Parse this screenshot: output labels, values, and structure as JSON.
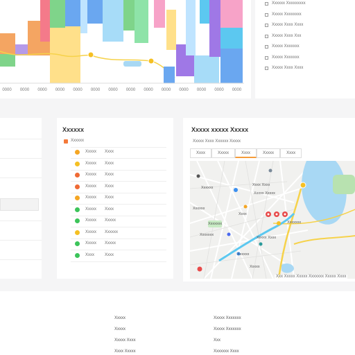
{
  "colors": {
    "bars": [
      "#7fd48a",
      "#f4a562",
      "#b59ae8",
      "#f47a8a",
      "#ffe08a",
      "#6aa7f0",
      "#a7dcf8",
      "#8ee3a8",
      "#f7a3c8",
      "#5cc8f0",
      "#9f78e6",
      "#bfe4ff"
    ],
    "route": "#5cc8f0",
    "water": "#a8d8f4",
    "road": "#f6d24a"
  },
  "chart": {
    "x_ticks": [
      "0000",
      "0000",
      "0000",
      "0000",
      "0000",
      "0000",
      "0000",
      "0000",
      "0000",
      "0000",
      "0000",
      "0000",
      "0000",
      "0000"
    ]
  },
  "legend": {
    "items": [
      "Xxxxxx Xxxxxxxxx",
      "Xxxxx Xxxxxxxx",
      "Xxxxx Xxxx Xxxx",
      "Xxxxx Xxxx Xxx",
      "Xxxxx Xxxxxxx",
      "Xxxxx Xxxxxxx",
      "Xxxxx Xxxx Xxxx"
    ]
  },
  "status": {
    "title": "Xxxxxx",
    "header": "Xxxxxx",
    "rows": [
      {
        "label": "Xxxxx",
        "value": "Xxxx",
        "color": "#f5a623"
      },
      {
        "label": "Xxxxx",
        "value": "Xxxx",
        "color": "#f5c023"
      },
      {
        "label": "Xxxxx",
        "value": "Xxxx",
        "color": "#ef6a35"
      },
      {
        "label": "Xxxxx",
        "value": "Xxxx",
        "color": "#ef6a35"
      },
      {
        "label": "Xxxxx",
        "value": "Xxxx",
        "color": "#f5a623"
      },
      {
        "label": "Xxxxx",
        "value": "Xxxx",
        "color": "#3cc45a"
      },
      {
        "label": "Xxxxx",
        "value": "Xxxxx",
        "color": "#3cc45a"
      },
      {
        "label": "Xxxxx",
        "value": "Xxxxxx",
        "color": "#f5c023"
      },
      {
        "label": "Xxxxx",
        "value": "Xxxxx",
        "color": "#3cc45a"
      },
      {
        "label": "Xxxx",
        "value": "Xxxx",
        "color": "#3cc45a"
      }
    ]
  },
  "map": {
    "title": "Xxxxx xxxxx Xxxxx",
    "subtitle": "Xxxxx Xxxx Xxxxxx Xxxxx",
    "tabs": [
      "Xxxx",
      "Xxxxx",
      "Xxxx",
      "Xxxxx",
      "Xxxx"
    ],
    "labels": [
      "Xxxxxx",
      "Xxxx Xxxx",
      "Xxxxxx",
      "Xxxxx Xxxxx",
      "Xxxxxxx",
      "Xxxx",
      "Xxxxxxx",
      "Xxxxxx",
      "Xxxxx",
      "Xxxxx Xxxx",
      "Xxxxxxx"
    ],
    "footer_text": "Xxx Xxxxx Xxxxx Xxxxxxx Xxxxx Xxxx"
  },
  "footer": {
    "left": [
      "Xxxxx",
      "Xxxxx",
      "Xxxxx Xxxx",
      "Xxxx Xxxxx"
    ],
    "right": [
      "Xxxxx Xxxxxxx",
      "Xxxxx Xxxxxxx",
      "Xxx",
      "Xxxxxxx Xxxx"
    ]
  }
}
